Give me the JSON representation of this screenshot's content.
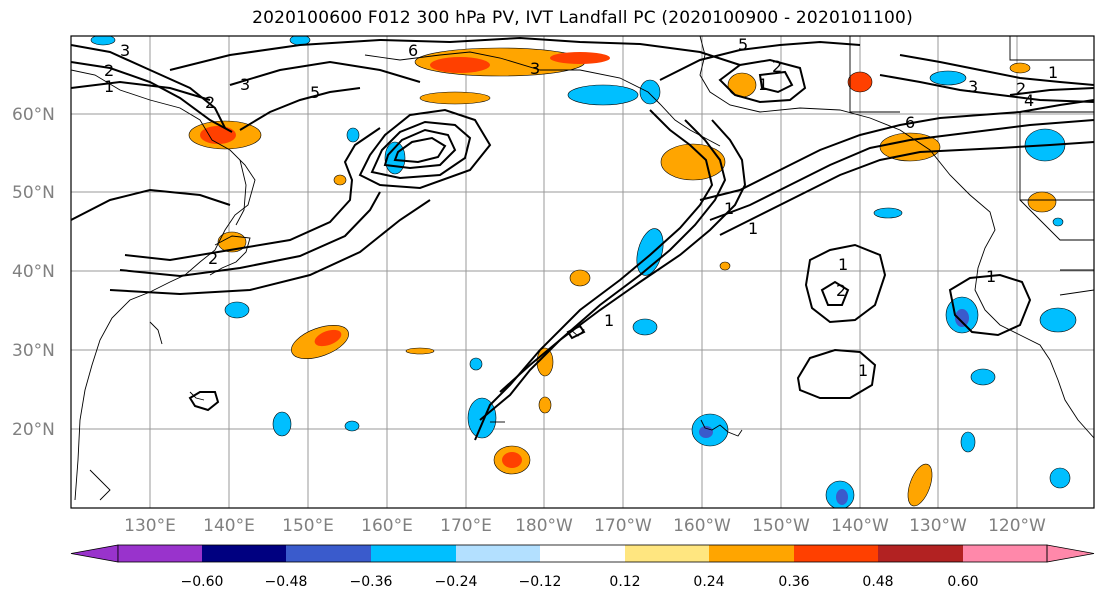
{
  "title": "2020100600 F012 300 hPa PV, IVT Landfall PC (2020100900 - 2020101100)",
  "map": {
    "lat_labels": [
      "60°N",
      "50°N",
      "40°N",
      "30°N",
      "20°N"
    ],
    "lon_labels": [
      "130°E",
      "140°E",
      "150°E",
      "160°E",
      "170°E",
      "180°W",
      "170°W",
      "160°W",
      "150°W",
      "140°W",
      "130°W",
      "120°W"
    ],
    "contour_labels": [
      "3",
      "2",
      "1",
      "2",
      "3",
      "5",
      "6",
      "5",
      "3",
      "2",
      "1",
      "2",
      "3",
      "4",
      "1",
      "1",
      "6",
      "1",
      "2",
      "1",
      "1",
      "2",
      "1",
      "1"
    ]
  },
  "colorbar": {
    "ticks": [
      "−0.60",
      "−0.48",
      "−0.36",
      "−0.24",
      "−0.12",
      "0.12",
      "0.24",
      "0.36",
      "0.48",
      "0.60"
    ],
    "colors": [
      "#9933cc",
      "#000080",
      "#3a5bcc",
      "#00bfff",
      "#b3e0ff",
      "#ffffff",
      "#ffe680",
      "#ffa500",
      "#ff4000",
      "#b22222",
      "#ff88aa"
    ]
  },
  "shading_colors": {
    "pos_light": "#ffe680",
    "pos_mid": "#ffa500",
    "pos_strong": "#ff4000",
    "neg_light": "#b3e0ff",
    "neg_mid": "#00bfff",
    "neg_strong": "#3a5bcc"
  }
}
